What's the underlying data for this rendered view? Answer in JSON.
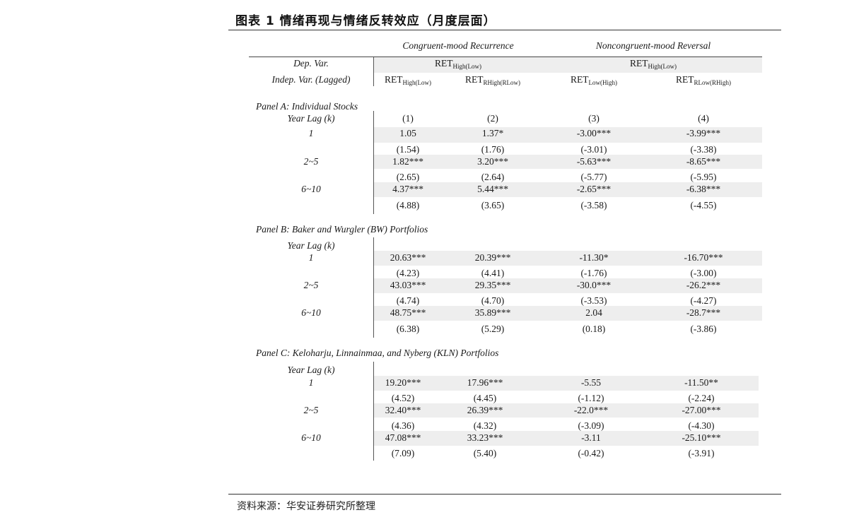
{
  "title": "图表 1 情绪再现与情绪反转效应（月度层面）",
  "source": "资料来源：华安证券研究所整理",
  "groups": {
    "congruent": "Congruent-mood Recurrence",
    "noncongruent": "Noncongruent-mood Reversal"
  },
  "dep": {
    "label": "Dep. Var.",
    "ret": "RET",
    "sub": "High(Low)"
  },
  "indep": {
    "label": "Indep. Var. (Lagged)"
  },
  "cols": [
    {
      "main": "RET",
      "sub": "High(Low)"
    },
    {
      "main": "RET",
      "sub": "RHigh(RLow)"
    },
    {
      "main": "RET",
      "sub": "Low(High)"
    },
    {
      "main": "RET",
      "sub": "RLow(RHigh)"
    }
  ],
  "panels": [
    {
      "title": "Panel A: Individual Stocks",
      "yearlag": "Year Lag (k)",
      "colnums": [
        "(1)",
        "(2)",
        "(3)",
        "(4)"
      ],
      "rows": [
        {
          "lag": "1",
          "coef": [
            "1.05",
            "1.37*",
            "-3.00***",
            "-3.99***"
          ],
          "t": [
            "(1.54)",
            "(1.76)",
            "(-3.01)",
            "(-3.38)"
          ]
        },
        {
          "lag": "2~5",
          "coef": [
            "1.82***",
            "3.20***",
            "-5.63***",
            "-8.65***"
          ],
          "t": [
            "(2.65)",
            "(2.64)",
            "(-5.77)",
            "(-5.95)"
          ]
        },
        {
          "lag": "6~10",
          "coef": [
            "4.37***",
            "5.44***",
            "-2.65***",
            "-6.38***"
          ],
          "t": [
            "(4.88)",
            "(3.65)",
            "(-3.58)",
            "(-4.55)"
          ]
        }
      ]
    },
    {
      "title": "Panel B: Baker and Wurgler (BW) Portfolios",
      "yearlag": "Year Lag (k)",
      "rows": [
        {
          "lag": "1",
          "coef": [
            "20.63***",
            "20.39***",
            "-11.30*",
            "-16.70***"
          ],
          "t": [
            "(4.23)",
            "(4.41)",
            "(-1.76)",
            "(-3.00)"
          ]
        },
        {
          "lag": "2~5",
          "coef": [
            "43.03***",
            "29.35***",
            "-30.0***",
            "-26.2***"
          ],
          "t": [
            "(4.74)",
            "(4.70)",
            "(-3.53)",
            "(-4.27)"
          ]
        },
        {
          "lag": "6~10",
          "coef": [
            "48.75***",
            "35.89***",
            "2.04",
            "-28.7***"
          ],
          "t": [
            "(6.38)",
            "(5.29)",
            "(0.18)",
            "(-3.86)"
          ]
        }
      ]
    },
    {
      "title": "Panel C: Keloharju, Linnainmaa, and Nyberg (KLN) Portfolios",
      "yearlag": "Year Lag (k)",
      "rows": [
        {
          "lag": "1",
          "coef": [
            "19.20***",
            "17.96***",
            "-5.55",
            "-11.50**"
          ],
          "t": [
            "(4.52)",
            "(4.45)",
            "(-1.12)",
            "(-2.24)"
          ]
        },
        {
          "lag": "2~5",
          "coef": [
            "32.40***",
            "26.39***",
            "-22.0***",
            "-27.00***"
          ],
          "t": [
            "(4.36)",
            "(4.32)",
            "(-3.09)",
            "(-4.30)"
          ]
        },
        {
          "lag": "6~10",
          "coef": [
            "47.08***",
            "33.23***",
            "-3.11",
            "-25.10***"
          ],
          "t": [
            "(7.09)",
            "(5.40)",
            "(-0.42)",
            "(-3.91)"
          ]
        }
      ]
    }
  ]
}
